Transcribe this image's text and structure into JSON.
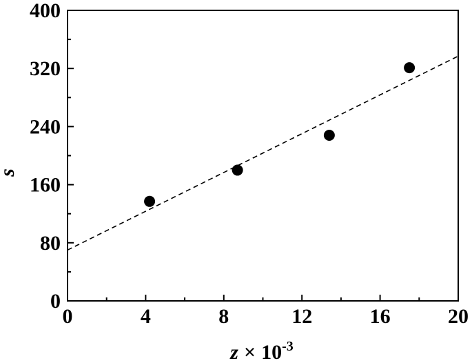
{
  "chart_data": {
    "type": "scatter",
    "title": "",
    "xlabel": {
      "var": "z",
      "times": "×",
      "base": "10",
      "exp": "-3"
    },
    "ylabel": "s",
    "xlim": [
      0,
      20
    ],
    "ylim": [
      0,
      400
    ],
    "x_ticks": [
      0,
      4,
      8,
      12,
      16,
      20
    ],
    "y_ticks": [
      0,
      80,
      160,
      240,
      320,
      400
    ],
    "x_tick_labels": [
      "0",
      "4",
      "8",
      "12",
      "16",
      "20"
    ],
    "y_tick_labels": [
      "0",
      "80",
      "160",
      "240",
      "320",
      "400"
    ],
    "x_minor_step": 2,
    "y_minor_step": 40,
    "grid": false,
    "series": [
      {
        "type": "scatter",
        "marker": "filled-circle",
        "color": "#000000",
        "x": [
          4.2,
          8.7,
          13.4,
          17.5
        ],
        "y": [
          137,
          180,
          228,
          321
        ]
      },
      {
        "type": "line",
        "style": "dashed",
        "color": "#000000",
        "x": [
          0,
          20
        ],
        "y": [
          70,
          337
        ]
      }
    ]
  }
}
